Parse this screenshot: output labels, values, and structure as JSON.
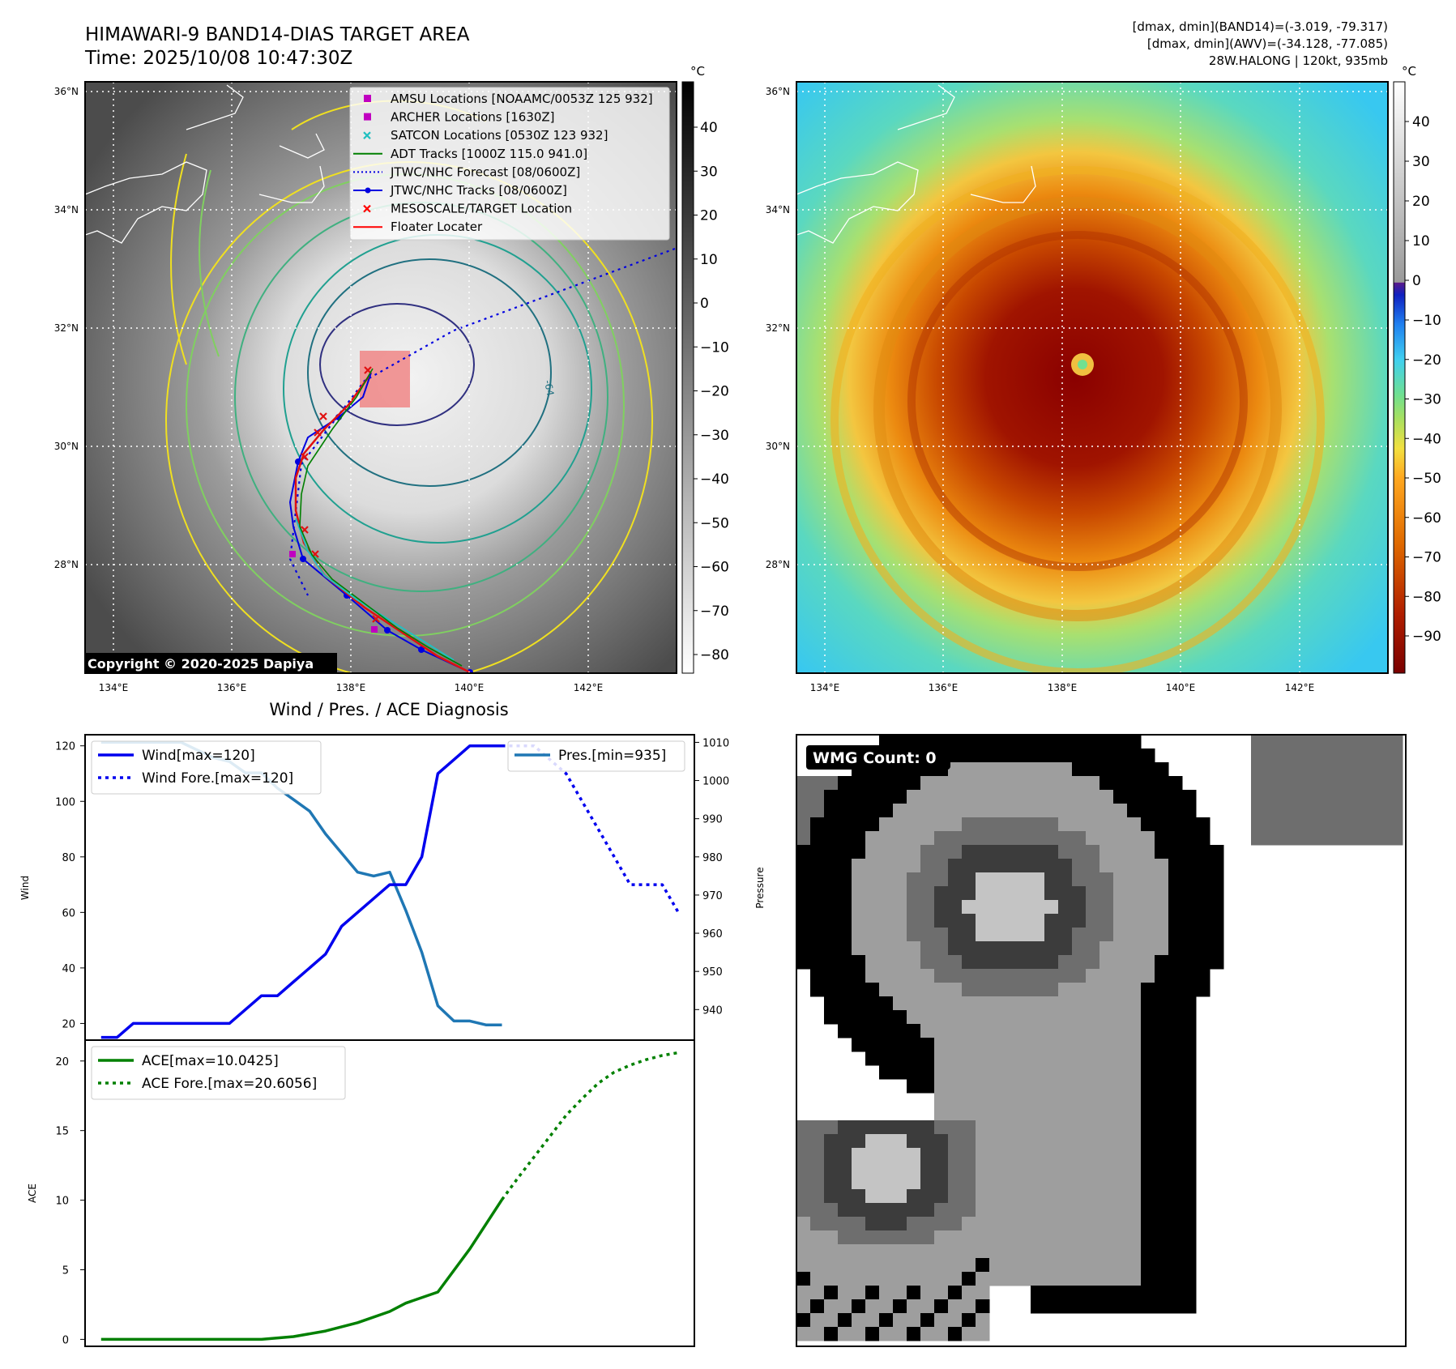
{
  "header": {
    "title": "HIMAWARI-9 BAND14-DIAS TARGET AREA",
    "time": "Time: 2025/10/08 10:47:30Z",
    "dmax_band14": "[dmax, dmin](BAND14)=(-3.019, -79.317)",
    "dmax_awv": "[dmax, dmin](AWV)=(-34.128, -77.085)",
    "storm": "28W.HALONG | 120kt, 935mb"
  },
  "map": {
    "lat_ticks": [
      "36°N",
      "34°N",
      "32°N",
      "30°N",
      "28°N"
    ],
    "lon_ticks": [
      "134°E",
      "136°E",
      "138°E",
      "140°E",
      "142°E"
    ],
    "copyright": "Copyright © 2020-2025 Dapiya",
    "contour_label": "-64",
    "colors": {
      "sat_bg": "#6e6e6e",
      "track": "#1010e0",
      "floater": "#e01010",
      "target_box": "#f08080"
    }
  },
  "legend": {
    "items": [
      {
        "label": "AMSU Locations [NOAAMC/0053Z 125 932]",
        "symbol": "square",
        "color": "#c000c0"
      },
      {
        "label": "ARCHER Locations [1630Z]",
        "symbol": "square",
        "color": "#c000c0"
      },
      {
        "label": "SATCON Locations [0530Z 123 932]",
        "symbol": "x",
        "color": "#20c0c0"
      },
      {
        "label": "ADT Tracks [1000Z 115.0 941.0]",
        "symbol": "line",
        "color": "#008000"
      },
      {
        "label": "JTWC/NHC Forecast [08/0600Z]",
        "symbol": "dotted",
        "color": "#0000e0"
      },
      {
        "label": "JTWC/NHC Tracks [08/0600Z]",
        "symbol": "dotline",
        "color": "#0000e0"
      },
      {
        "label": "MESOSCALE/TARGET Location",
        "symbol": "x",
        "color": "#ff0000"
      },
      {
        "label": "Floater Locater",
        "symbol": "line",
        "color": "#ff0000"
      }
    ]
  },
  "colorbars": {
    "unit": "°C",
    "left_ticks": [
      "40",
      "30",
      "20",
      "10",
      "0",
      "−10",
      "−20",
      "−30",
      "−40",
      "−50",
      "−60",
      "−70",
      "−80"
    ],
    "right_ticks": [
      "40",
      "30",
      "20",
      "10",
      "0",
      "−10",
      "−20",
      "−30",
      "−40",
      "−50",
      "−60",
      "−70",
      "−80",
      "−90"
    ]
  },
  "diagnosis": {
    "title": "Wind / Pres. / ACE Diagnosis",
    "wind_axis_label": "Wind",
    "pressure_axis_label": "Pressure",
    "ace_axis_label": "ACE",
    "wind_ticks": [
      "20",
      "40",
      "60",
      "80",
      "100",
      "120"
    ],
    "pressure_ticks": [
      "940",
      "950",
      "960",
      "970",
      "980",
      "990",
      "1000",
      "1010"
    ],
    "ace_ticks": [
      "0",
      "5",
      "10",
      "15",
      "20"
    ],
    "legend_wind": "Wind[max=120]",
    "legend_wind_fore": "Wind Fore.[max=120]",
    "legend_pres": "Pres.[min=935]",
    "legend_ace": "ACE[max=10.0425]",
    "legend_ace_fore": "ACE Fore.[max=20.6056]"
  },
  "wmg": {
    "label": "WMG Count: 0"
  },
  "chart_data": [
    {
      "type": "line",
      "title": "Wind / Pres. / ACE Diagnosis",
      "ylabel": "Wind",
      "ylim": [
        14,
        124
      ],
      "series": [
        {
          "name": "Wind[max=120]",
          "color": "#0000ee",
          "style": "solid",
          "x": [
            0,
            1,
            2,
            3,
            4,
            5,
            6,
            7,
            8,
            9,
            10,
            11,
            12,
            13,
            14,
            15,
            16,
            17,
            18,
            19,
            20,
            21,
            22,
            23,
            24,
            25
          ],
          "y": [
            15,
            15,
            20,
            20,
            20,
            20,
            20,
            20,
            20,
            25,
            30,
            30,
            35,
            40,
            45,
            55,
            60,
            65,
            70,
            70,
            80,
            110,
            115,
            120,
            120,
            120
          ]
        },
        {
          "name": "Wind Fore.[max=120]",
          "color": "#0000ee",
          "style": "dotted",
          "x": [
            25,
            26,
            27,
            28,
            29,
            30,
            31,
            32,
            33,
            34,
            35,
            36
          ],
          "y": [
            120,
            120,
            120,
            115,
            110,
            100,
            90,
            80,
            70,
            70,
            70,
            60
          ]
        }
      ]
    },
    {
      "type": "line",
      "ylabel": "Pressure",
      "ylim": [
        932,
        1012
      ],
      "series": [
        {
          "name": "Pres.[min=935]",
          "color": "#1f77b4",
          "style": "solid",
          "x": [
            0,
            1,
            2,
            3,
            4,
            5,
            6,
            7,
            8,
            9,
            10,
            11,
            12,
            13,
            14,
            15,
            16,
            17,
            18,
            19,
            20,
            21,
            22,
            23,
            24,
            25
          ],
          "y": [
            1010,
            1010,
            1010,
            1010,
            1010,
            1010,
            1008,
            1006,
            1005,
            1002,
            1002,
            998,
            995,
            992,
            986,
            981,
            976,
            975,
            976,
            966,
            955,
            941,
            937,
            937,
            936,
            936
          ]
        }
      ]
    },
    {
      "type": "line",
      "ylabel": "ACE",
      "ylim": [
        -0.5,
        21.5
      ],
      "series": [
        {
          "name": "ACE[max=10.0425]",
          "color": "#008000",
          "style": "solid",
          "x": [
            0,
            2,
            4,
            6,
            8,
            10,
            12,
            14,
            16,
            18,
            19,
            21,
            23,
            25
          ],
          "y": [
            0,
            0,
            0,
            0,
            0,
            0,
            0.2,
            0.6,
            1.2,
            2.0,
            2.6,
            3.4,
            6.5,
            10.04
          ]
        },
        {
          "name": "ACE Fore.[max=20.6056]",
          "color": "#008000",
          "style": "dotted",
          "x": [
            25,
            26,
            27,
            28,
            29,
            30,
            31,
            32,
            33,
            34,
            35,
            36
          ],
          "y": [
            10.04,
            11.6,
            13.1,
            14.6,
            16.1,
            17.3,
            18.4,
            19.2,
            19.7,
            20.1,
            20.4,
            20.6
          ]
        }
      ]
    }
  ]
}
